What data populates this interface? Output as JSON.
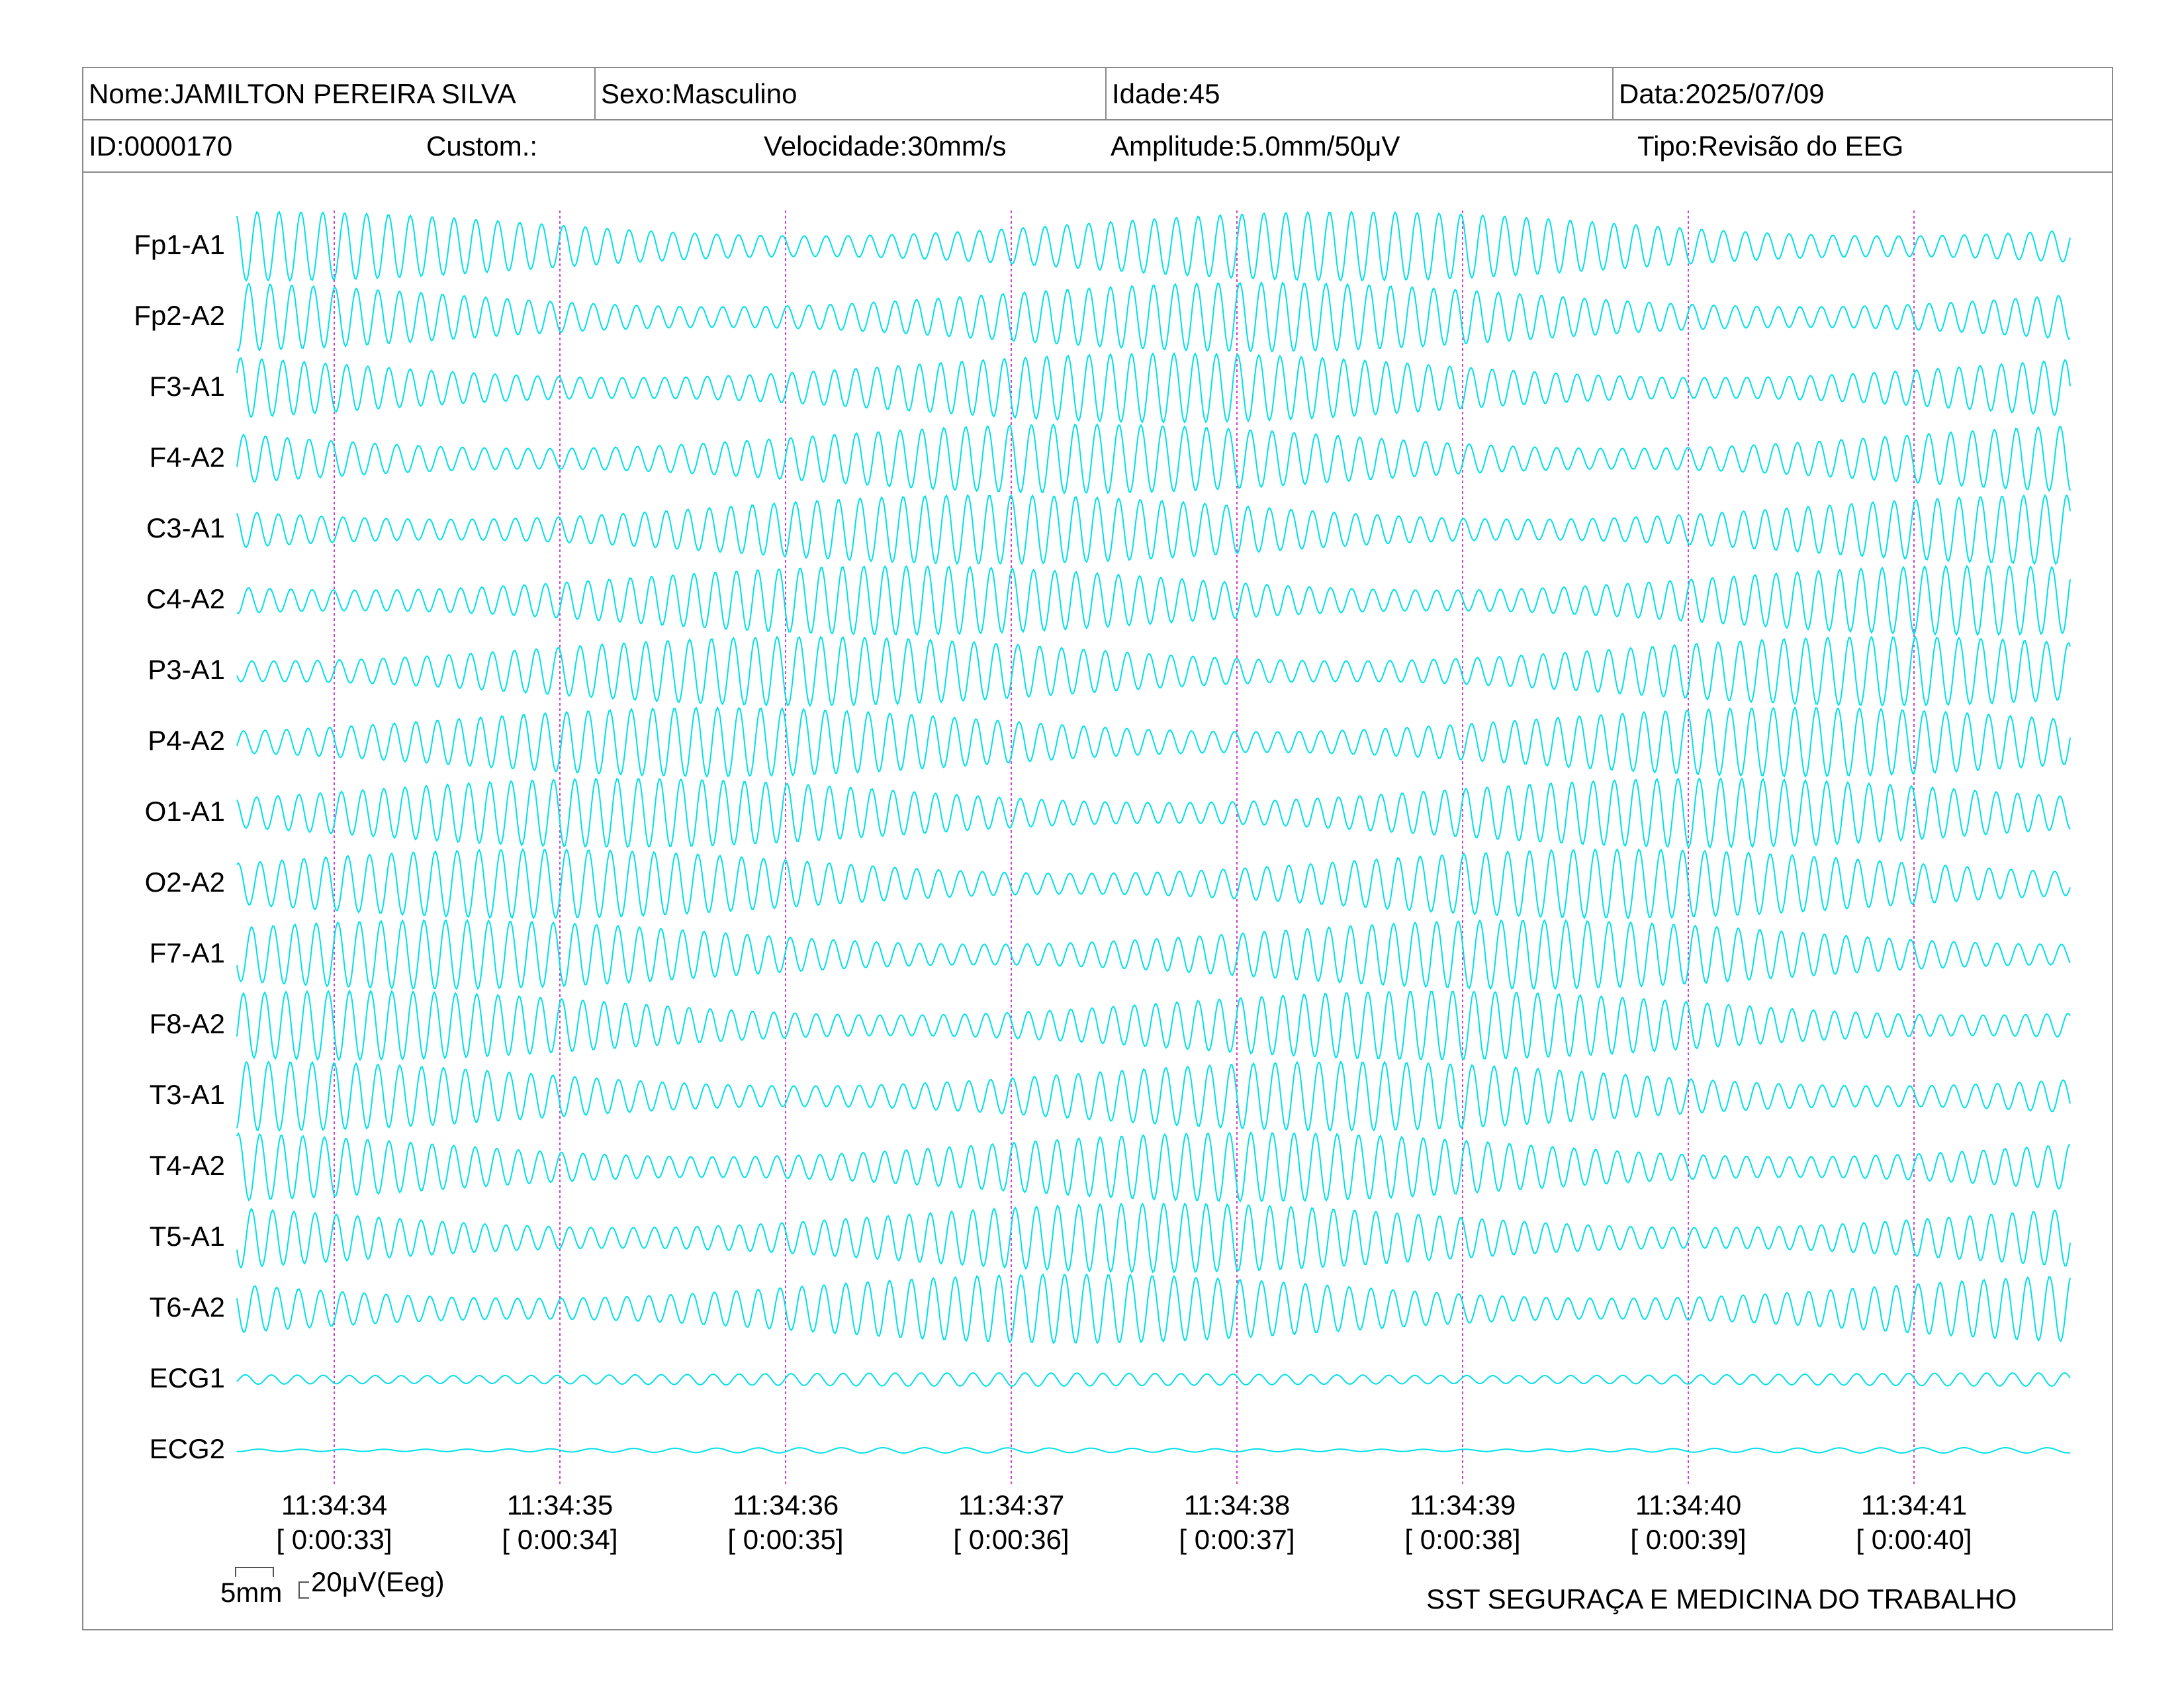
{
  "header": {
    "name": "Nome:JAMILTON PEREIRA SILVA",
    "sex": "Sexo:Masculino",
    "age": "Idade:45",
    "date": "Data:2025/07/09",
    "id": "ID:0000170",
    "custom": "Custom.:",
    "speed": "Velocidade:30mm/s",
    "amplitude": "Amplitude:5.0mm/50μV",
    "type": "Tipo:Revisão do EEG"
  },
  "scale": {
    "length": "5mm",
    "amplitude": "20μV(Eeg)"
  },
  "footer": {
    "organization": "SST SEGURAÇA E MEDICINA DO TRABALHO"
  },
  "colors": {
    "trace": "#00e0e8",
    "time_marker": "#d040d0",
    "border": "#8a8a8a"
  },
  "chart_data": {
    "type": "line",
    "channels": [
      "Fp1-A1",
      "Fp2-A2",
      "F3-A1",
      "F4-A2",
      "C3-A1",
      "C4-A2",
      "P3-A1",
      "P4-A2",
      "O1-A1",
      "O2-A2",
      "F7-A1",
      "F8-A2",
      "T3-A1",
      "T4-A2",
      "T5-A1",
      "T6-A2",
      "ECG1",
      "ECG2"
    ],
    "time_markers": [
      {
        "clock": "11:34:34",
        "elapsed": "[ 0:00:33]"
      },
      {
        "clock": "11:34:35",
        "elapsed": "[ 0:00:34]"
      },
      {
        "clock": "11:34:36",
        "elapsed": "[ 0:00:35]"
      },
      {
        "clock": "11:34:37",
        "elapsed": "[ 0:00:36]"
      },
      {
        "clock": "11:34:38",
        "elapsed": "[ 0:00:37]"
      },
      {
        "clock": "11:34:39",
        "elapsed": "[ 0:00:38]"
      },
      {
        "clock": "11:34:40",
        "elapsed": "[ 0:00:39]"
      },
      {
        "clock": "11:34:41",
        "elapsed": "[ 0:00:40]"
      }
    ],
    "speed_mm_per_s": 30,
    "amplitude_mm_per_50uV": 5.0
  }
}
